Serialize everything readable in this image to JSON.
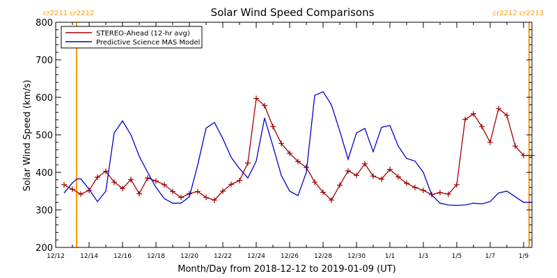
{
  "chart_data": {
    "type": "line",
    "title": "Solar Wind Speed Comparisons",
    "xlabel": "Month/Day from 2018-12-12 to 2019-01-09 (UT)",
    "ylabel": "Solar Wind Speed (km/s)",
    "x_unit": "date",
    "xlim": [
      "2018-12-12T00:00",
      "2019-01-09T12:00"
    ],
    "ylim": [
      200,
      800
    ],
    "y_ticks": [
      200,
      300,
      400,
      500,
      600,
      700,
      800
    ],
    "x_ticks": [
      {
        "date": "2018-12-12",
        "label": "12/12"
      },
      {
        "date": "2018-12-14",
        "label": "12/14"
      },
      {
        "date": "2018-12-16",
        "label": "12/16"
      },
      {
        "date": "2018-12-18",
        "label": "12/18"
      },
      {
        "date": "2018-12-20",
        "label": "12/20"
      },
      {
        "date": "2018-12-22",
        "label": "12/22"
      },
      {
        "date": "2018-12-24",
        "label": "12/24"
      },
      {
        "date": "2018-12-26",
        "label": "12/26"
      },
      {
        "date": "2018-12-28",
        "label": "12/28"
      },
      {
        "date": "2018-12-30",
        "label": "12/30"
      },
      {
        "date": "2019-01-01",
        "label": "1/1"
      },
      {
        "date": "2019-01-03",
        "label": "1/3"
      },
      {
        "date": "2019-01-05",
        "label": "1/5"
      },
      {
        "date": "2019-01-07",
        "label": "1/7"
      },
      {
        "date": "2019-01-09",
        "label": "1/9"
      }
    ],
    "grid": false,
    "legend_position": "top-left",
    "carrington_markers": [
      {
        "date": "2018-12-13T06:00",
        "label": "cr2211 cr2212",
        "color": "#ff9900",
        "label_side": "left"
      },
      {
        "date": "2019-01-09T08:00",
        "label": "cr2212 cr2213",
        "color": "#ff9900",
        "label_side": "right"
      }
    ],
    "series": [
      {
        "name": "STEREO-Ahead (12-hr avg)",
        "color": "#a00000",
        "marker": "plus",
        "x": [
          "2018-12-12T12:00",
          "2018-12-13T00:00",
          "2018-12-13T12:00",
          "2018-12-14T00:00",
          "2018-12-14T12:00",
          "2018-12-15T00:00",
          "2018-12-15T12:00",
          "2018-12-16T00:00",
          "2018-12-16T12:00",
          "2018-12-17T00:00",
          "2018-12-17T12:00",
          "2018-12-18T00:00",
          "2018-12-18T12:00",
          "2018-12-19T00:00",
          "2018-12-19T12:00",
          "2018-12-20T00:00",
          "2018-12-20T12:00",
          "2018-12-21T00:00",
          "2018-12-21T12:00",
          "2018-12-22T00:00",
          "2018-12-22T12:00",
          "2018-12-23T00:00",
          "2018-12-23T12:00",
          "2018-12-24T00:00",
          "2018-12-24T12:00",
          "2018-12-25T00:00",
          "2018-12-25T12:00",
          "2018-12-26T00:00",
          "2018-12-26T12:00",
          "2018-12-27T00:00",
          "2018-12-27T12:00",
          "2018-12-28T00:00",
          "2018-12-28T12:00",
          "2018-12-29T00:00",
          "2018-12-29T12:00",
          "2018-12-30T00:00",
          "2018-12-30T12:00",
          "2018-12-31T00:00",
          "2018-12-31T12:00",
          "2019-01-01T00:00",
          "2019-01-01T12:00",
          "2019-01-02T00:00",
          "2019-01-02T12:00",
          "2019-01-03T00:00",
          "2019-01-03T12:00",
          "2019-01-04T00:00",
          "2019-01-04T12:00",
          "2019-01-05T00:00",
          "2019-01-05T12:00",
          "2019-01-06T00:00",
          "2019-01-06T12:00",
          "2019-01-07T00:00",
          "2019-01-07T12:00",
          "2019-01-08T00:00",
          "2019-01-08T12:00",
          "2019-01-09T00:00",
          "2019-01-09T12:00"
        ],
        "y": [
          367,
          355,
          342,
          352,
          387,
          403,
          374,
          357,
          381,
          343,
          385,
          377,
          367,
          349,
          333,
          343,
          349,
          333,
          326,
          350,
          368,
          378,
          425,
          597,
          578,
          522,
          477,
          451,
          429,
          413,
          374,
          347,
          326,
          366,
          404,
          392,
          423,
          390,
          382,
          408,
          388,
          371,
          360,
          352,
          341,
          346,
          342,
          367,
          541,
          556,
          522,
          480,
          570,
          552,
          470,
          445,
          445
        ]
      },
      {
        "name": "Predictive Science MAS Model",
        "color": "#0000cc",
        "marker": "none",
        "x": [
          "2018-12-12T12:00",
          "2018-12-13T00:00",
          "2018-12-13T06:00",
          "2018-12-13T12:00",
          "2018-12-14T00:00",
          "2018-12-14T12:00",
          "2018-12-15T00:00",
          "2018-12-15T12:00",
          "2018-12-16T00:00",
          "2018-12-16T12:00",
          "2018-12-17T00:00",
          "2018-12-17T12:00",
          "2018-12-18T00:00",
          "2018-12-18T12:00",
          "2018-12-19T00:00",
          "2018-12-19T12:00",
          "2018-12-20T00:00",
          "2018-12-20T12:00",
          "2018-12-21T00:00",
          "2018-12-21T12:00",
          "2018-12-22T00:00",
          "2018-12-22T12:00",
          "2018-12-23T00:00",
          "2018-12-23T12:00",
          "2018-12-24T00:00",
          "2018-12-24T12:00",
          "2018-12-25T00:00",
          "2018-12-25T12:00",
          "2018-12-26T00:00",
          "2018-12-26T12:00",
          "2018-12-27T00:00",
          "2018-12-27T12:00",
          "2018-12-28T00:00",
          "2018-12-28T12:00",
          "2018-12-29T00:00",
          "2018-12-29T12:00",
          "2018-12-30T00:00",
          "2018-12-30T12:00",
          "2018-12-31T00:00",
          "2018-12-31T12:00",
          "2019-01-01T00:00",
          "2019-01-01T12:00",
          "2019-01-02T00:00",
          "2019-01-02T12:00",
          "2019-01-03T00:00",
          "2019-01-03T12:00",
          "2019-01-04T00:00",
          "2019-01-04T12:00",
          "2019-01-05T00:00",
          "2019-01-05T12:00",
          "2019-01-06T00:00",
          "2019-01-06T12:00",
          "2019-01-07T00:00",
          "2019-01-07T12:00",
          "2019-01-08T00:00",
          "2019-01-08T12:00",
          "2019-01-09T00:00",
          "2019-01-09T12:00"
        ],
        "y": [
          345,
          372,
          382,
          383,
          355,
          322,
          350,
          505,
          537,
          500,
          443,
          400,
          360,
          330,
          318,
          318,
          335,
          420,
          518,
          533,
          490,
          440,
          410,
          385,
          430,
          545,
          470,
          392,
          350,
          338,
          400,
          605,
          615,
          580,
          510,
          435,
          505,
          517,
          455,
          520,
          525,
          470,
          437,
          430,
          400,
          340,
          318,
          313,
          312,
          313,
          318,
          316,
          322,
          345,
          350,
          335,
          320,
          320
        ]
      }
    ]
  }
}
